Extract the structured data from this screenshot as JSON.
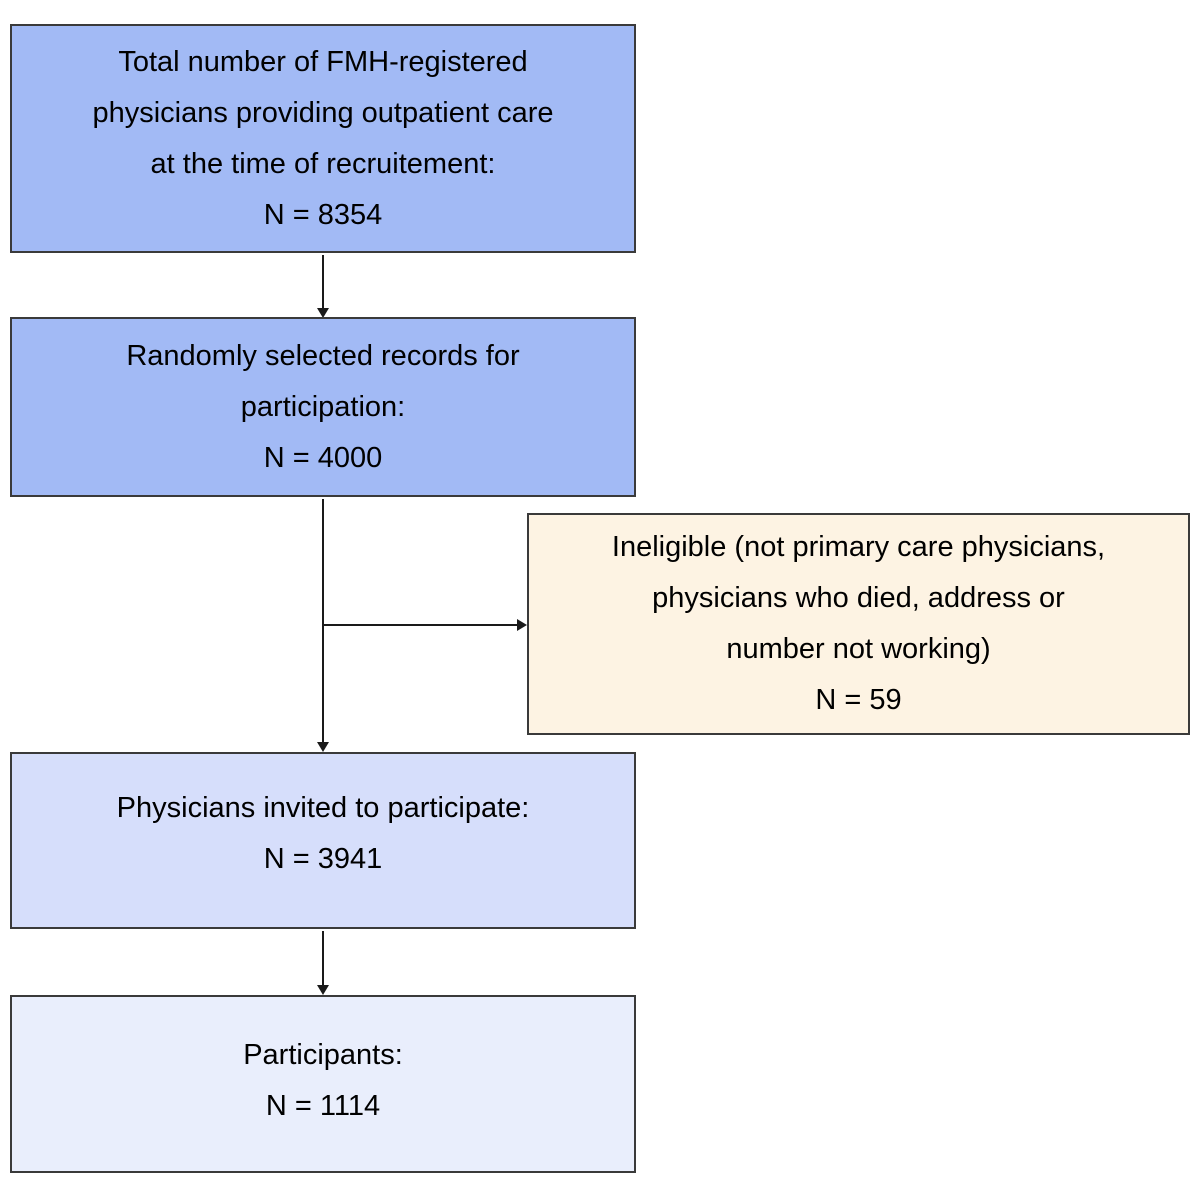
{
  "flow": {
    "total": {
      "lines": [
        "Total number of FMH-registered",
        "physicians providing outpatient care",
        "at the time of recruitement:",
        "N = 8354"
      ],
      "n": "8354"
    },
    "selected": {
      "lines": [
        "Randomly selected records for",
        "participation:",
        "N = 4000"
      ],
      "n": "4000"
    },
    "ineligible": {
      "lines": [
        "Ineligible (not primary care physicians,",
        "physicians who died, address or",
        "number not working)",
        "N = 59"
      ],
      "n": "59"
    },
    "invited": {
      "lines": [
        "Physicians invited to participate:",
        "N = 3941"
      ],
      "n": "3941"
    },
    "participants": {
      "lines": [
        "Participants:",
        "N = 1114"
      ],
      "n": "1114"
    }
  },
  "colors": {
    "box_primary_fill": "#a2baf5",
    "box_invited_fill": "#d6defb",
    "box_participants_fill": "#e9eefc",
    "box_ineligible_fill": "#fdf3e3",
    "box_border": "#3a3a3a",
    "arrow": "#1a1a1a",
    "text": "#000000",
    "background": "#ffffff"
  }
}
